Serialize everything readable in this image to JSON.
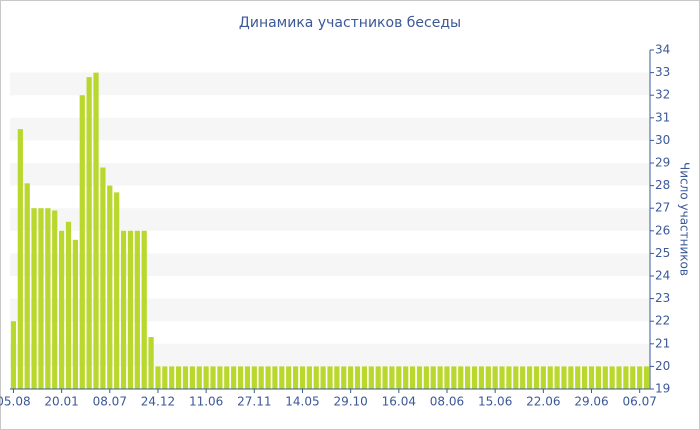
{
  "chart_data": {
    "type": "bar",
    "title": "Динамика участников беседы",
    "y_label": "Число участников",
    "categories": [
      "05.08",
      null,
      null,
      null,
      null,
      null,
      null,
      "20.01",
      null,
      null,
      null,
      null,
      null,
      null,
      "08.07",
      null,
      null,
      null,
      null,
      null,
      null,
      "24.12",
      null,
      null,
      null,
      null,
      null,
      null,
      "11.06",
      null,
      null,
      null,
      null,
      null,
      null,
      "27.11",
      null,
      null,
      null,
      null,
      null,
      null,
      "14.05",
      null,
      null,
      null,
      null,
      null,
      null,
      "29.10",
      null,
      null,
      null,
      null,
      null,
      null,
      "16.04",
      null,
      null,
      null,
      null,
      null,
      null,
      "08.06",
      null,
      null,
      null,
      null,
      null,
      null,
      "15.06",
      null,
      null,
      null,
      null,
      null,
      null,
      "22.06",
      null,
      null,
      null,
      null,
      null,
      null,
      "29.06",
      null,
      null,
      null,
      null,
      null,
      null,
      "06.07",
      null
    ],
    "values": [
      22,
      30.5,
      28.1,
      27,
      27,
      27,
      26.9,
      26,
      26.4,
      25.6,
      32,
      32.8,
      33,
      28.8,
      28,
      27.7,
      26,
      26,
      26,
      26,
      21.3,
      20,
      20,
      20,
      20,
      20,
      20,
      20,
      20,
      20,
      20,
      20,
      20,
      20,
      20,
      20,
      20,
      20,
      20,
      20,
      20,
      20,
      20,
      20,
      20,
      20,
      20,
      20,
      20,
      20,
      20,
      20,
      20,
      20,
      20,
      20,
      20,
      20,
      20,
      20,
      20,
      20,
      20,
      20,
      20,
      20,
      20,
      20,
      20,
      20,
      20,
      20,
      20,
      20,
      20,
      20,
      20,
      20,
      20,
      20,
      20,
      20,
      20,
      20,
      20,
      20,
      20,
      20,
      20,
      20,
      20,
      20,
      20
    ],
    "color": "#b8d82e",
    "ylim": [
      19,
      34
    ],
    "yticks": [
      19,
      20,
      21,
      22,
      23,
      24,
      25,
      26,
      27,
      28,
      29,
      30,
      31,
      32,
      33,
      34
    ],
    "grid": true
  }
}
